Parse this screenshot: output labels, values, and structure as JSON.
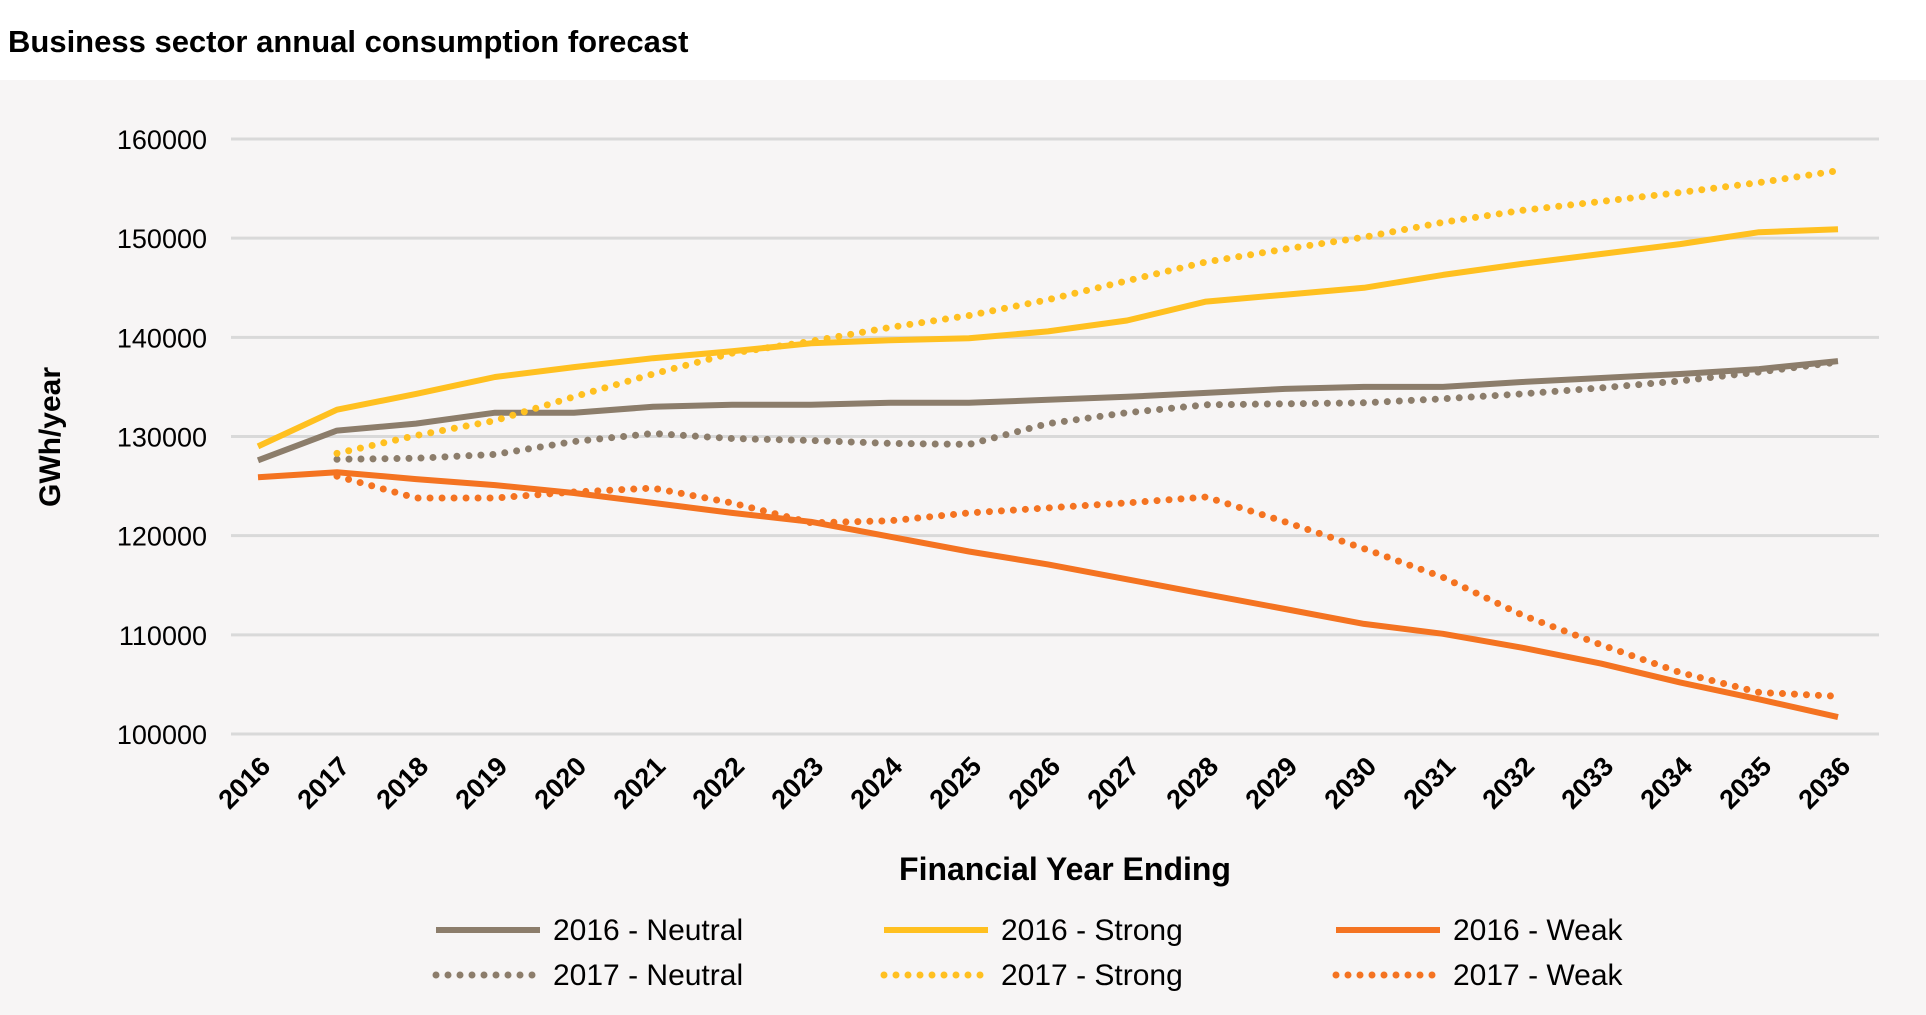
{
  "chart_data": {
    "type": "line",
    "title": "Business sector annual consumption forecast",
    "xlabel": "Financial Year Ending",
    "ylabel": "GWh/year",
    "ylim": [
      100000,
      160000
    ],
    "yticks": [
      100000,
      110000,
      120000,
      130000,
      140000,
      150000,
      160000
    ],
    "grid": true,
    "legend_position": "bottom",
    "x": [
      "2016",
      "2017",
      "2018",
      "2019",
      "2020",
      "2021",
      "2022",
      "2023",
      "2024",
      "2025",
      "2026",
      "2027",
      "2028",
      "2029",
      "2030",
      "2031",
      "2032",
      "2033",
      "2034",
      "2035",
      "2036"
    ],
    "series": [
      {
        "name": "2016 - Neutral",
        "color": "#8c7d6b",
        "style": "solid",
        "values": [
          127600,
          130600,
          131300,
          132400,
          132400,
          133000,
          133200,
          133200,
          133400,
          133400,
          133700,
          134000,
          134400,
          134800,
          135000,
          135000,
          135500,
          135900,
          136300,
          136800,
          137600
        ]
      },
      {
        "name": "2016 - Strong",
        "color": "#ffc020",
        "style": "solid",
        "values": [
          129000,
          132700,
          134300,
          136000,
          137000,
          137900,
          138600,
          139400,
          139700,
          139900,
          140600,
          141700,
          143600,
          144300,
          145000,
          146300,
          147400,
          148400,
          149400,
          150600,
          150900
        ]
      },
      {
        "name": "2016 - Weak",
        "color": "#f47321",
        "style": "solid",
        "values": [
          125900,
          126400,
          125700,
          125100,
          124300,
          123300,
          122300,
          121400,
          119900,
          118400,
          117100,
          115600,
          114100,
          112600,
          111100,
          110100,
          108700,
          107100,
          105200,
          103500,
          101700
        ]
      },
      {
        "name": "2017 - Neutral",
        "color": "#8c7d6b",
        "style": "dotted",
        "values": [
          null,
          127700,
          127800,
          128200,
          129500,
          130300,
          129800,
          129600,
          129300,
          129200,
          131300,
          132400,
          133200,
          133300,
          133400,
          133800,
          134300,
          134900,
          135600,
          136500,
          137500
        ]
      },
      {
        "name": "2017 - Strong",
        "color": "#ffc020",
        "style": "dotted",
        "values": [
          null,
          128300,
          130100,
          131600,
          134000,
          136300,
          138400,
          139600,
          141000,
          142200,
          143800,
          145700,
          147600,
          148900,
          150100,
          151600,
          152800,
          153700,
          154600,
          155600,
          156800
        ]
      },
      {
        "name": "2017 - Weak",
        "color": "#f47321",
        "style": "dotted",
        "values": [
          null,
          126000,
          123800,
          123800,
          124400,
          124800,
          123300,
          121300,
          121500,
          122300,
          122800,
          123300,
          123900,
          121400,
          118700,
          115800,
          112000,
          109000,
          106200,
          104200,
          103800
        ]
      }
    ]
  }
}
